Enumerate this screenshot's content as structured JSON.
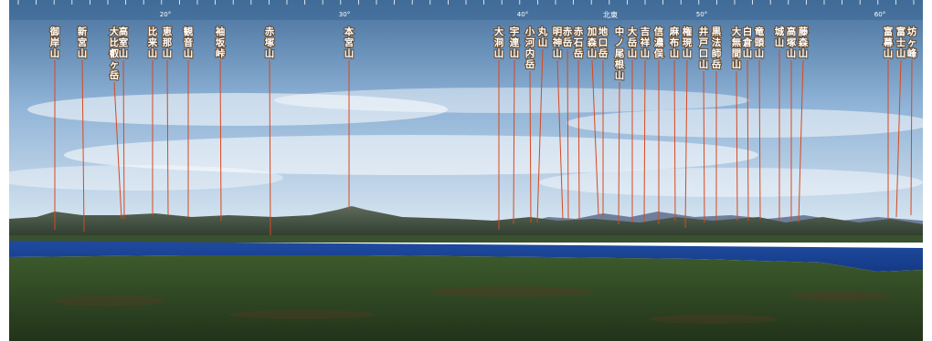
{
  "compass": {
    "degree_ticks": [
      "20°",
      "30°",
      "40°",
      "50°",
      "60°"
    ],
    "direction_label": "北東"
  },
  "peaks": [
    {
      "name": "御岸山"
    },
    {
      "name": "新宮山"
    },
    {
      "name": "大比叡ヶ岳"
    },
    {
      "name": "高室山"
    },
    {
      "name": "比来山"
    },
    {
      "name": "恵那山"
    },
    {
      "name": "観音山"
    },
    {
      "name": "袖坂峠"
    },
    {
      "name": "赤塚山"
    },
    {
      "name": "本宮山"
    },
    {
      "name": "大洞山"
    },
    {
      "name": "宇連山"
    },
    {
      "name": "小河内岳"
    },
    {
      "name": "丸山"
    },
    {
      "name": "明神山"
    },
    {
      "name": "赤岳"
    },
    {
      "name": "赤石岳"
    },
    {
      "name": "加森山"
    },
    {
      "name": "地口岳"
    },
    {
      "name": "中ノ尾根山"
    },
    {
      "name": "大岳山"
    },
    {
      "name": "吉祥山"
    },
    {
      "name": "信濃俣"
    },
    {
      "name": "麻布山"
    },
    {
      "name": "権現山"
    },
    {
      "name": "井戸口山"
    },
    {
      "name": "黒法師岳"
    },
    {
      "name": "大無間山"
    },
    {
      "name": "白倉山"
    },
    {
      "name": "竜頭山"
    },
    {
      "name": "城山"
    },
    {
      "name": "高塚山"
    },
    {
      "name": "藤森山"
    },
    {
      "name": "富幕山"
    },
    {
      "name": "富士山"
    },
    {
      "name": "坊ヶ峰"
    }
  ]
}
